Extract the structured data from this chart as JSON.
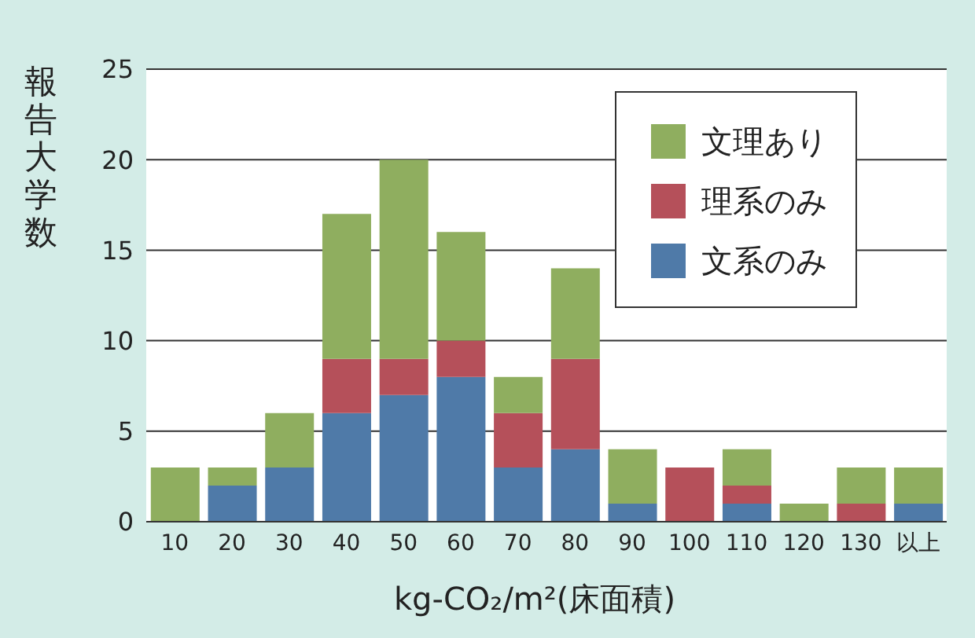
{
  "chart_data": {
    "type": "bar",
    "stacked": true,
    "xlabel": "kg-CO₂/m²(床面積)",
    "ylabel": "報告大学数",
    "categories": [
      "10",
      "20",
      "30",
      "40",
      "50",
      "60",
      "70",
      "80",
      "90",
      "100",
      "110",
      "120",
      "130",
      "以上"
    ],
    "series": [
      {
        "name": "文系のみ",
        "color": "#4f7aa8",
        "values": [
          0,
          2,
          3,
          6,
          7,
          8,
          3,
          4,
          1,
          0,
          1,
          0,
          0,
          1
        ]
      },
      {
        "name": "理系のみ",
        "color": "#b5505a",
        "values": [
          0,
          0,
          0,
          3,
          2,
          2,
          3,
          5,
          0,
          3,
          1,
          0,
          1,
          0
        ]
      },
      {
        "name": "文理あり",
        "color": "#8fae5f",
        "values": [
          3,
          1,
          3,
          8,
          11,
          6,
          2,
          5,
          3,
          0,
          2,
          1,
          2,
          2
        ]
      }
    ],
    "ylim": [
      0,
      25
    ],
    "yticks": [
      0,
      5,
      10,
      15,
      20,
      25
    ],
    "grid": "y",
    "legend": "top right"
  }
}
